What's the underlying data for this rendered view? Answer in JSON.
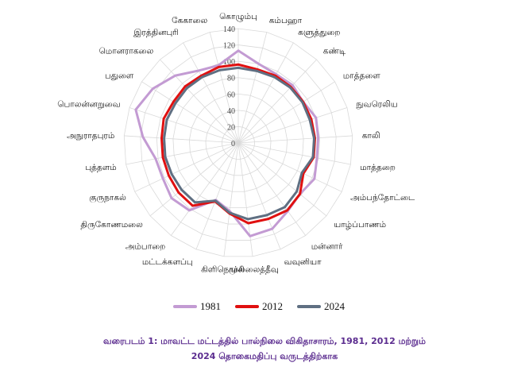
{
  "chart_data": {
    "type": "radar",
    "categories": [
      "கொழும்பு",
      "கம்பஹா",
      "களுத்துறை",
      "கண்டி",
      "மாத்தளை",
      "நுவரெலிய",
      "காலி",
      "மாத்தறை",
      "அம்பந்தோட்டை",
      "யாழ்ப்பாணம்",
      "மன்னார்",
      "வவுனியா",
      "முல்லைத்தீவு",
      "கிளிநொச்சி",
      "மட்டக்களப்பு",
      "அம்பாறை",
      "திருகோணமலை",
      "குருநாகல்",
      "புத்தளம்",
      "அநுராதபுரம்",
      "பொலன்னறுவை",
      "பதுளை",
      "மொனராகலை",
      "இரத்தினபுரி",
      "கேகாலை"
    ],
    "rlim": [
      0,
      140
    ],
    "ticks": [
      0,
      20,
      40,
      60,
      80,
      100,
      120,
      140
    ],
    "series": [
      {
        "name": "1981",
        "color": "#c39bd3",
        "values": [
          113,
          100,
          96,
          97,
          94,
          100,
          98,
          98,
          103,
          98,
          103,
          113,
          115,
          84,
          75,
          102,
          106,
          102,
          103,
          117,
          132,
          124,
          113,
          101,
          98
        ]
      },
      {
        "name": "2012",
        "color": "#e01010",
        "values": [
          96,
          93,
          94,
          94,
          94,
          94,
          94,
          94,
          88,
          98,
          102,
          100,
          99,
          87,
          77,
          95,
          95,
          94,
          94,
          94,
          96,
          94,
          95,
          94,
          96
        ]
      },
      {
        "name": "2024",
        "color": "#5f6f82",
        "values": [
          92,
          91,
          92,
          93,
          93,
          92,
          93,
          93,
          86,
          93,
          97,
          95,
          94,
          86,
          76,
          90,
          90,
          90,
          91,
          91,
          92,
          91,
          92,
          92,
          92
        ]
      }
    ]
  },
  "caption": {
    "line1": "வரைபடம் 1: மாவட்ட மட்டத்தில் பால்நிலை விகிதாசாரம், 1981, 2012 மற்றும்",
    "line2": "2024 தொகைமதிப்பு வருடத்திற்காக"
  }
}
